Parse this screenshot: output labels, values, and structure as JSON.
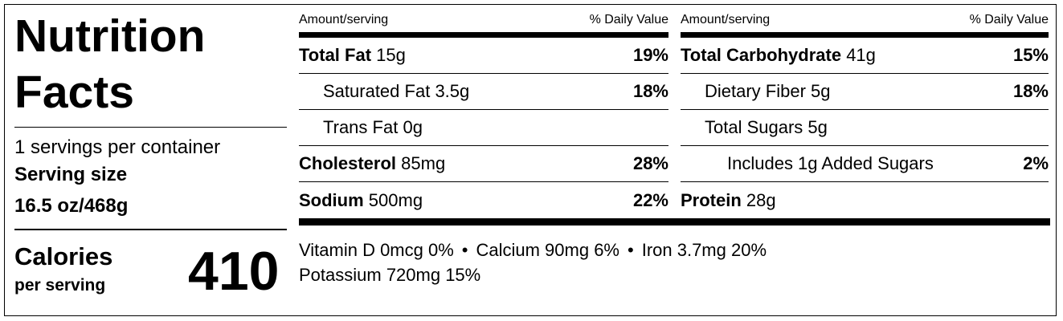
{
  "label": {
    "title": "Nutrition Facts",
    "servings": "1 servings per container",
    "serving_size_label": "Serving size",
    "serving_size": "16.5 oz/468g",
    "calories_label": "Calories",
    "calories_basis": "per serving",
    "calories": "410",
    "columns": [
      {
        "header": {
          "amount": "Amount/serving",
          "daily_value": "% Daily Value"
        },
        "rows": [
          {
            "name": "Total Fat",
            "amount": "15g",
            "daily_value": "19%"
          },
          {
            "name": "Saturated Fat",
            "amount": "3.5g",
            "daily_value": "18%"
          },
          {
            "name": "Trans Fat",
            "amount": "0g"
          },
          {
            "name": "Cholesterol",
            "amount": "85mg",
            "daily_value": "28%"
          },
          {
            "name": "Sodium",
            "amount": "500mg",
            "daily_value": "22%"
          }
        ]
      },
      {
        "header": {
          "amount": "Amount/serving",
          "daily_value": "% Daily Value"
        },
        "rows": [
          {
            "name": "Total Carbohydrate",
            "amount": "41g",
            "daily_value": "15%"
          },
          {
            "name": "Dietary Fiber",
            "amount": "5g",
            "daily_value": "18%"
          },
          {
            "name": "Total Sugars",
            "amount": "5g"
          },
          {
            "name": "Includes 1g Added Sugars",
            "daily_value": "2%"
          },
          {
            "name": "Protein",
            "amount": "28g"
          }
        ]
      }
    ],
    "micronutrients": [
      "Vitamin D 0mcg 0%",
      "Calcium 90mg 6%",
      "Iron 3.7mg 20%",
      "Potassium 720mg 15%"
    ]
  }
}
